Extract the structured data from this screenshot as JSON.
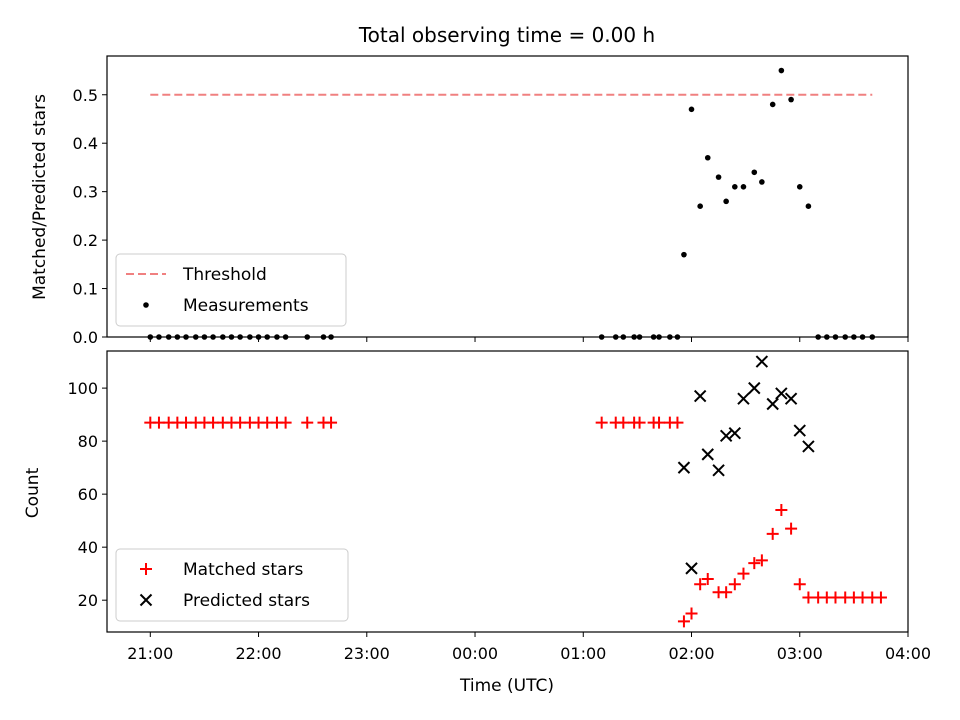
{
  "chart_data": {
    "title": "Total observing time = 0.00 h",
    "xlabel": "Time (UTC)",
    "x_ticks": [
      "21:00",
      "22:00",
      "23:00",
      "00:00",
      "01:00",
      "02:00",
      "03:00",
      "04:00"
    ],
    "x_range_hours": [
      20.6,
      28.0
    ],
    "panels": [
      {
        "type": "scatter",
        "ylabel": "Matched/Predicted stars",
        "ylim": [
          0,
          0.58
        ],
        "yticks": [
          0.0,
          0.1,
          0.2,
          0.3,
          0.4,
          0.5
        ],
        "ytick_labels": [
          "0.0",
          "0.1",
          "0.2",
          "0.3",
          "0.4",
          "0.5"
        ],
        "legend_position": "lower left",
        "threshold": {
          "name": "Threshold",
          "value": 0.5,
          "x": [
            21.0,
            27.67
          ],
          "color": "#f08080",
          "style": "dashed"
        },
        "series": [
          {
            "name": "Measurements",
            "marker": "dot",
            "color": "#000000",
            "points": [
              [
                21.0,
                0
              ],
              [
                21.08,
                0
              ],
              [
                21.17,
                0
              ],
              [
                21.25,
                0
              ],
              [
                21.33,
                0
              ],
              [
                21.42,
                0
              ],
              [
                21.5,
                0
              ],
              [
                21.58,
                0
              ],
              [
                21.67,
                0
              ],
              [
                21.75,
                0
              ],
              [
                21.83,
                0
              ],
              [
                21.92,
                0
              ],
              [
                22.0,
                0
              ],
              [
                22.08,
                0
              ],
              [
                22.17,
                0
              ],
              [
                22.25,
                0
              ],
              [
                22.45,
                0
              ],
              [
                22.6,
                0
              ],
              [
                22.67,
                0
              ],
              [
                25.17,
                0
              ],
              [
                25.3,
                0
              ],
              [
                25.37,
                0
              ],
              [
                25.47,
                0
              ],
              [
                25.52,
                0
              ],
              [
                25.65,
                0
              ],
              [
                25.7,
                0
              ],
              [
                25.8,
                0
              ],
              [
                25.87,
                0
              ],
              [
                25.93,
                0.17
              ],
              [
                26.0,
                0.47
              ],
              [
                26.08,
                0.27
              ],
              [
                26.15,
                0.37
              ],
              [
                26.25,
                0.33
              ],
              [
                26.32,
                0.28
              ],
              [
                26.4,
                0.31
              ],
              [
                26.48,
                0.31
              ],
              [
                26.58,
                0.34
              ],
              [
                26.65,
                0.32
              ],
              [
                26.75,
                0.48
              ],
              [
                26.83,
                0.55
              ],
              [
                26.92,
                0.49
              ],
              [
                27.0,
                0.31
              ],
              [
                27.08,
                0.27
              ],
              [
                27.17,
                0
              ],
              [
                27.25,
                0
              ],
              [
                27.33,
                0
              ],
              [
                27.42,
                0
              ],
              [
                27.5,
                0
              ],
              [
                27.58,
                0
              ],
              [
                27.67,
                0
              ]
            ]
          }
        ]
      },
      {
        "type": "scatter",
        "ylabel": "Count",
        "ylim": [
          8,
          114
        ],
        "yticks": [
          20,
          40,
          60,
          80,
          100
        ],
        "ytick_labels": [
          "20",
          "40",
          "60",
          "80",
          "100"
        ],
        "legend_position": "lower left",
        "series": [
          {
            "name": "Matched stars",
            "marker": "plus",
            "color": "#ff0000",
            "points": [
              [
                21.0,
                87
              ],
              [
                21.08,
                87
              ],
              [
                21.17,
                87
              ],
              [
                21.25,
                87
              ],
              [
                21.33,
                87
              ],
              [
                21.42,
                87
              ],
              [
                21.5,
                87
              ],
              [
                21.58,
                87
              ],
              [
                21.67,
                87
              ],
              [
                21.75,
                87
              ],
              [
                21.83,
                87
              ],
              [
                21.92,
                87
              ],
              [
                22.0,
                87
              ],
              [
                22.08,
                87
              ],
              [
                22.17,
                87
              ],
              [
                22.25,
                87
              ],
              [
                22.45,
                87
              ],
              [
                22.6,
                87
              ],
              [
                22.67,
                87
              ],
              [
                25.17,
                87
              ],
              [
                25.3,
                87
              ],
              [
                25.37,
                87
              ],
              [
                25.47,
                87
              ],
              [
                25.52,
                87
              ],
              [
                25.65,
                87
              ],
              [
                25.7,
                87
              ],
              [
                25.8,
                87
              ],
              [
                25.87,
                87
              ],
              [
                25.93,
                12
              ],
              [
                26.0,
                15
              ],
              [
                26.08,
                26
              ],
              [
                26.15,
                28
              ],
              [
                26.25,
                23
              ],
              [
                26.32,
                23
              ],
              [
                26.4,
                26
              ],
              [
                26.48,
                30
              ],
              [
                26.58,
                34
              ],
              [
                26.65,
                35
              ],
              [
                26.75,
                45
              ],
              [
                26.83,
                54
              ],
              [
                26.92,
                47
              ],
              [
                27.0,
                26
              ],
              [
                27.08,
                21
              ],
              [
                27.17,
                21
              ],
              [
                27.25,
                21
              ],
              [
                27.33,
                21
              ],
              [
                27.42,
                21
              ],
              [
                27.5,
                21
              ],
              [
                27.58,
                21
              ],
              [
                27.67,
                21
              ],
              [
                27.75,
                21
              ]
            ]
          },
          {
            "name": "Predicted stars",
            "marker": "x",
            "color": "#000000",
            "points": [
              [
                25.93,
                70
              ],
              [
                26.0,
                32
              ],
              [
                26.08,
                97
              ],
              [
                26.15,
                75
              ],
              [
                26.25,
                69
              ],
              [
                26.32,
                82
              ],
              [
                26.4,
                83
              ],
              [
                26.48,
                96
              ],
              [
                26.58,
                100
              ],
              [
                26.65,
                110
              ],
              [
                26.75,
                94
              ],
              [
                26.83,
                98
              ],
              [
                26.92,
                96
              ],
              [
                27.0,
                84
              ],
              [
                27.08,
                78
              ]
            ]
          }
        ]
      }
    ]
  }
}
